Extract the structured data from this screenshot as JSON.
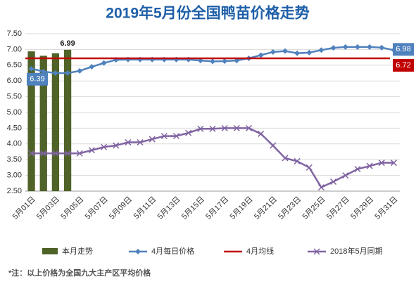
{
  "chart_data": {
    "type": "combo",
    "title": "2019年5月份全国鸭苗价格走势",
    "note": "*注：以上价格为全国九大主产区平均价格",
    "categories": [
      "5月01日",
      null,
      "5月03日",
      null,
      "5月05日",
      null,
      "5月07日",
      null,
      "5月09日",
      null,
      "5月11日",
      null,
      "5月13日",
      null,
      "5月15日",
      null,
      "5月17日",
      null,
      "5月19日",
      null,
      "5月21日",
      null,
      "5月23日",
      null,
      "5月25日",
      null,
      "5月27日",
      null,
      "5月29日",
      null,
      "5月31日"
    ],
    "ylim": [
      2.5,
      7.5
    ],
    "yticks": [
      {
        "value": 2.5,
        "label": "2.50"
      },
      {
        "value": 3,
        "label": "3.00"
      },
      {
        "value": 3.5,
        "label": "3.50"
      },
      {
        "value": 4,
        "label": "4.00"
      },
      {
        "value": 4.5,
        "label": "4.50"
      },
      {
        "value": 5,
        "label": "5.00"
      },
      {
        "value": 5.5,
        "label": "5.50"
      },
      {
        "value": 6,
        "label": "6.00"
      },
      {
        "value": 6.5,
        "label": "6.50"
      },
      {
        "value": 7,
        "label": "7.00"
      },
      {
        "value": 7.5,
        "label": "7.50"
      }
    ],
    "grid": true,
    "series": [
      {
        "name": "本月走势",
        "type": "bar",
        "color": "#4f6228",
        "values": [
          6.94,
          6.8,
          6.88,
          6.99,
          null,
          null,
          null,
          null,
          null,
          null,
          null,
          null,
          null,
          null,
          null,
          null,
          null,
          null,
          null,
          null,
          null,
          null,
          null,
          null,
          null,
          null,
          null,
          null,
          null,
          null,
          null
        ]
      },
      {
        "name": "4月每日价格",
        "type": "line",
        "marker": "diamond",
        "color": "#4f81bd",
        "values": [
          6.39,
          6.3,
          6.25,
          6.25,
          6.32,
          6.45,
          6.57,
          6.67,
          6.68,
          6.68,
          6.68,
          6.68,
          6.68,
          6.68,
          6.65,
          6.62,
          6.63,
          6.65,
          6.72,
          6.82,
          6.92,
          6.95,
          6.88,
          6.9,
          6.98,
          7.05,
          7.08,
          7.08,
          7.08,
          7.06,
          6.98
        ]
      },
      {
        "name": "4月均线",
        "type": "hline",
        "color": "#c00000",
        "value": 6.72
      },
      {
        "name": "2018年5月同期",
        "type": "line",
        "marker": "x",
        "color": "#8064a2",
        "values": [
          3.7,
          3.7,
          3.7,
          3.7,
          3.7,
          3.8,
          3.9,
          3.95,
          4.05,
          4.05,
          4.15,
          4.25,
          4.25,
          4.35,
          4.48,
          4.48,
          4.5,
          4.5,
          4.5,
          4.32,
          3.95,
          3.55,
          3.45,
          3.25,
          2.62,
          2.8,
          3.0,
          3.2,
          3.3,
          3.4,
          3.4
        ]
      }
    ]
  }
}
